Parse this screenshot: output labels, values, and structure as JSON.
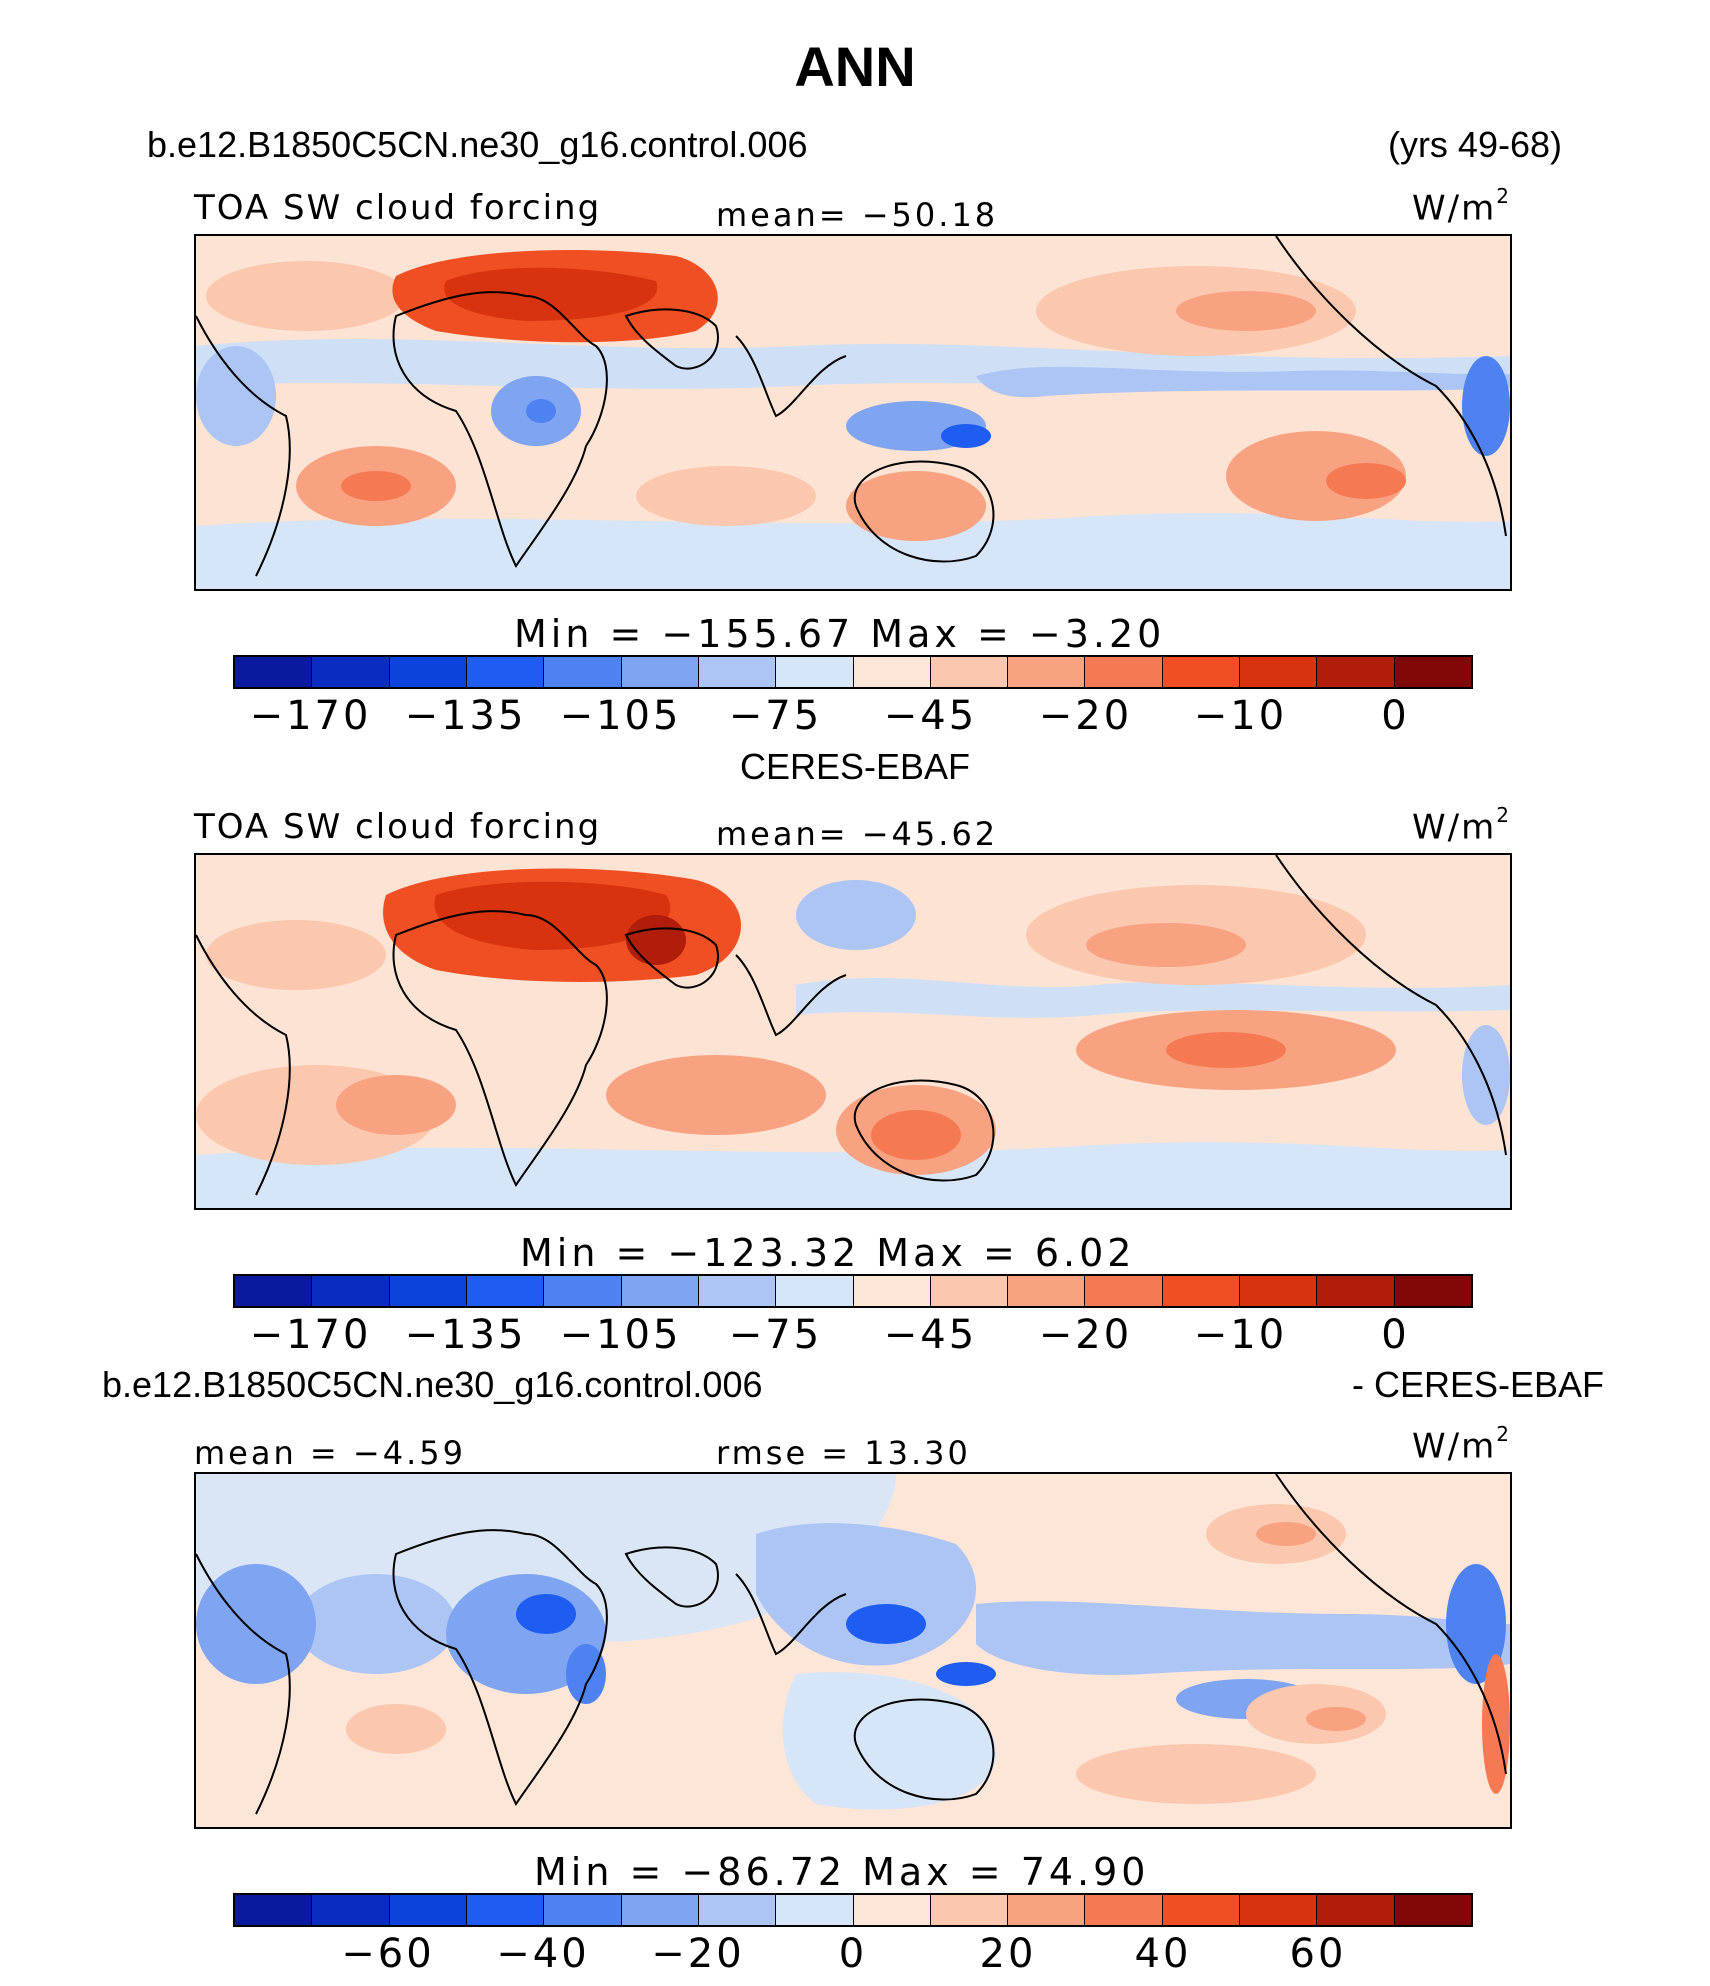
{
  "figure": {
    "title": "ANN",
    "case_name": "b.e12.B1850C5CN.ne30_g16.control.006",
    "years": "(yrs 49-68)"
  },
  "panels": [
    {
      "variable": "TOA SW cloud forcing",
      "stat_left": "",
      "stat_center": "mean=  −50.18",
      "units": "W/m",
      "units_sup": "2",
      "minmax": "Min  =  −155.67  Max  =    −3.20",
      "colorbar_ticks": [
        "−170",
        "−135",
        "−105",
        "−75",
        "−45",
        "−20",
        "−10",
        "0"
      ],
      "field_kind": "model"
    },
    {
      "header": "CERES-EBAF",
      "variable": "TOA SW cloud forcing",
      "stat_left": "",
      "stat_center": "mean=  −45.62",
      "units": "W/m",
      "units_sup": "2",
      "minmax": "Min  =  −123.32  Max  =     6.02",
      "colorbar_ticks": [
        "−170",
        "−135",
        "−105",
        "−75",
        "−45",
        "−20",
        "−10",
        "0"
      ],
      "field_kind": "obs"
    },
    {
      "header_left": "b.e12.B1850C5CN.ne30_g16.control.006",
      "header_right": "- CERES-EBAF",
      "variable": "",
      "stat_left": "mean  =   −4.59",
      "stat_center": "rmse  =   13.30",
      "units": "W/m",
      "units_sup": "2",
      "minmax": "Min  =  −86.72  Max  =   74.90",
      "colorbar_ticks": [
        "−60",
        "−40",
        "−20",
        "0",
        "20",
        "40",
        "60"
      ],
      "field_kind": "diff"
    }
  ],
  "colormaps": {
    "sequential": [
      "#0a1a9e",
      "#0b2cc0",
      "#0d43dd",
      "#1e5cf2",
      "#4f82f1",
      "#7ea4f2",
      "#acc5f5",
      "#d6e5f8",
      "#fde6d8",
      "#fbc7ae",
      "#f8a282",
      "#f57a54",
      "#f04f23",
      "#d9320f",
      "#b01d0b",
      "#800808"
    ],
    "diverging": [
      "#0a1a9e",
      "#0b2cc0",
      "#0d43dd",
      "#1e5cf2",
      "#4f82f1",
      "#7ea4f2",
      "#acc5f5",
      "#d6e5f8",
      "#fde6d8",
      "#fbc7ae",
      "#f8a282",
      "#f57a54",
      "#f04f23",
      "#d9320f",
      "#b01d0b",
      "#800808"
    ]
  }
}
